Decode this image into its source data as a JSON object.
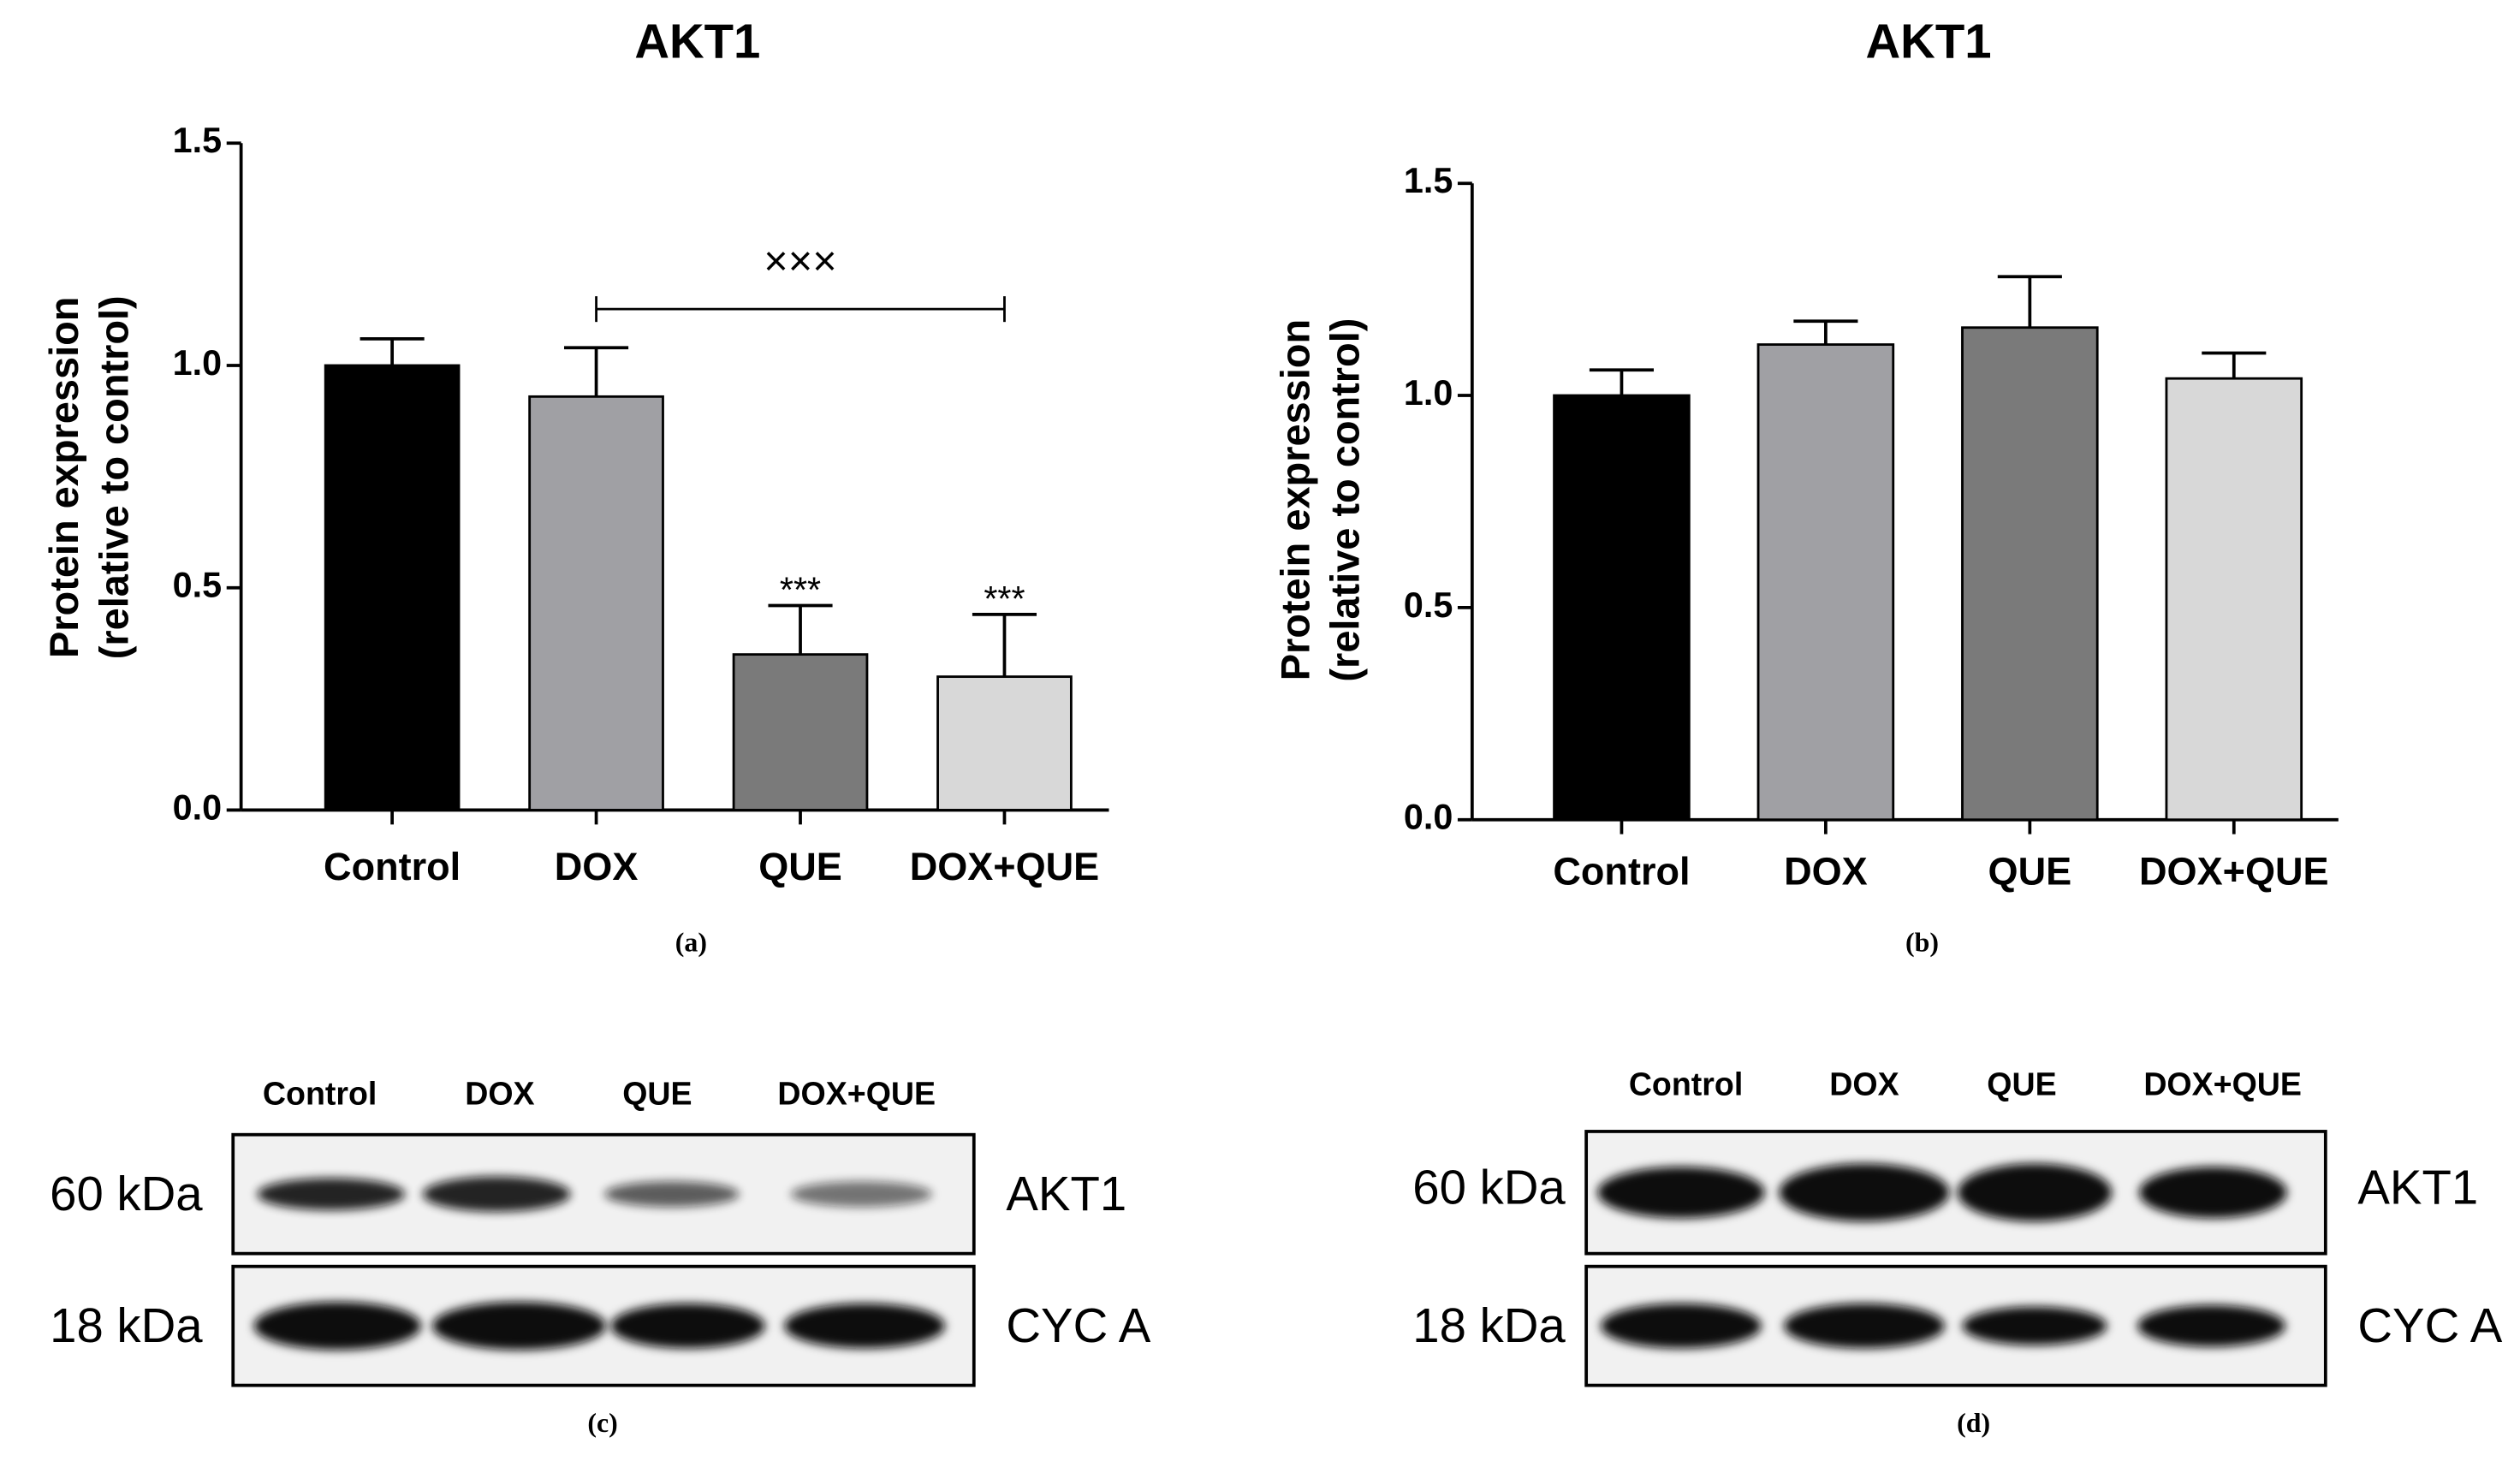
{
  "chart_data": [
    {
      "type": "bar",
      "label": "(a)",
      "title": "AKT1",
      "y_label": [
        "Protein expression",
        "(relative to control)"
      ],
      "categories": [
        "Control",
        "DOX",
        "QUE",
        "DOX+QUE"
      ],
      "values": [
        1.0,
        0.93,
        0.35,
        0.3
      ],
      "errors": [
        0.06,
        0.11,
        0.11,
        0.14
      ],
      "colors": [
        "#000000",
        "#a0a0a4",
        "#7a7a7a",
        "#d8d8d8"
      ],
      "ylim": [
        0,
        1.5
      ],
      "yticks": [
        {
          "value": 0,
          "label": "0.0"
        },
        0.5,
        {
          "value": 1,
          "label": "1.0"
        },
        1.5
      ],
      "annotations": [
        {
          "text": "***",
          "x": "QUE"
        },
        {
          "text": "***",
          "x": "DOX+QUE"
        }
      ],
      "brackets": [
        {
          "text": "×××",
          "from": "DOX",
          "to": "DOX+QUE"
        }
      ]
    },
    {
      "type": "bar",
      "label": "(b)",
      "title": "AKT1",
      "y_label": [
        "Protein expression",
        "(relative to control)"
      ],
      "categories": [
        "Control",
        "DOX",
        "QUE",
        "DOX+QUE"
      ],
      "values": [
        1.0,
        1.12,
        1.16,
        1.04
      ],
      "errors": [
        0.06,
        0.055,
        0.12,
        0.06
      ],
      "colors": [
        "#000000",
        "#a0a0a4",
        "#7a7a7a",
        "#d8d8d8"
      ],
      "ylim": [
        0,
        1.5
      ],
      "yticks": [
        {
          "value": 0,
          "label": "0.0"
        },
        0.5,
        {
          "value": 1,
          "label": "1.0"
        },
        1.5
      ]
    }
  ],
  "blots": [
    {
      "label": "(c)",
      "lanes": [
        "Control",
        "DOX",
        "QUE",
        "DOX+QUE"
      ],
      "rows": [
        {
          "size": "60 kDa",
          "protein": "AKT1"
        },
        {
          "size": "18 kDa",
          "protein": "CYC A"
        }
      ]
    },
    {
      "label": "(d)",
      "lanes": [
        "Control",
        "DOX",
        "QUE",
        "DOX+QUE"
      ],
      "rows": [
        {
          "size": "60 kDa",
          "protein": "AKT1"
        },
        {
          "size": "18 kDa",
          "protein": "CYC A"
        }
      ]
    }
  ]
}
